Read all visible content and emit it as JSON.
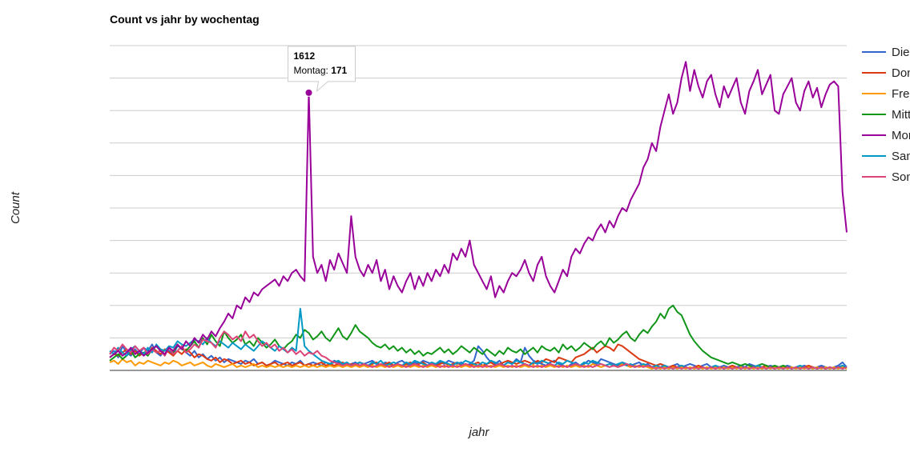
{
  "chart_data": {
    "type": "line",
    "title": "Count vs jahr by wochentag",
    "xlabel": "jahr",
    "ylabel": "Count",
    "ylim": [
      0,
      200
    ],
    "grid": true,
    "legend_position": "right",
    "series": [
      {
        "name": "Dienstag",
        "color": "#3366cc",
        "values": [
          10,
          12,
          8,
          15,
          11,
          9,
          13,
          10,
          14,
          12,
          16,
          11,
          9,
          13,
          12,
          10,
          15,
          14,
          11,
          9,
          12,
          8,
          10,
          7,
          9,
          6,
          8,
          5,
          7,
          6,
          5,
          4,
          6,
          5,
          7,
          4,
          5,
          3,
          4,
          6,
          5,
          4,
          3,
          5,
          4,
          6,
          3,
          4,
          5,
          4,
          3,
          5,
          4,
          6,
          5,
          4,
          3,
          4,
          5,
          3,
          4,
          5,
          6,
          4,
          3,
          5,
          4,
          3,
          5,
          6,
          4,
          3,
          5,
          4,
          6,
          5,
          4,
          3,
          5,
          4,
          6,
          5,
          4,
          5,
          3,
          4,
          6,
          15,
          12,
          8,
          5,
          4,
          6,
          3,
          5,
          4,
          7,
          5,
          14,
          9,
          6,
          5,
          4,
          3,
          5,
          6,
          4,
          3,
          2,
          4,
          5,
          3,
          4,
          6,
          5,
          4,
          7,
          6,
          5,
          4,
          3,
          5,
          4,
          3,
          4,
          5,
          3,
          4,
          2,
          3,
          4,
          3,
          2,
          3,
          4,
          2,
          3,
          4,
          3,
          2,
          3,
          4,
          2,
          1,
          2,
          3,
          2,
          3,
          2,
          3,
          2,
          4,
          3,
          2,
          1,
          2,
          3,
          2,
          1,
          2,
          3,
          2,
          1,
          2,
          3,
          2,
          1,
          2,
          3,
          2,
          1,
          2,
          3,
          5,
          2
        ]
      },
      {
        "name": "Donnerstag",
        "color": "#dc3912",
        "values": [
          8,
          10,
          9,
          11,
          13,
          10,
          12,
          9,
          11,
          10,
          14,
          12,
          10,
          13,
          11,
          9,
          12,
          10,
          13,
          11,
          8,
          10,
          9,
          7,
          6,
          8,
          5,
          7,
          6,
          4,
          5,
          6,
          4,
          5,
          3,
          4,
          5,
          3,
          4,
          5,
          3,
          4,
          5,
          3,
          4,
          5,
          3,
          4,
          3,
          4,
          5,
          3,
          4,
          3,
          4,
          5,
          3,
          4,
          3,
          5,
          4,
          3,
          4,
          5,
          3,
          4,
          5,
          3,
          4,
          3,
          4,
          5,
          3,
          4,
          5,
          3,
          4,
          3,
          4,
          5,
          3,
          4,
          5,
          3,
          4,
          3,
          4,
          5,
          3,
          4,
          5,
          3,
          4,
          5,
          6,
          5,
          4,
          5,
          6,
          5,
          4,
          6,
          5,
          7,
          6,
          5,
          8,
          7,
          6,
          5,
          8,
          9,
          10,
          12,
          14,
          11,
          13,
          15,
          14,
          12,
          16,
          15,
          13,
          11,
          9,
          7,
          6,
          5,
          4,
          3,
          4,
          3,
          2,
          3,
          2,
          3,
          2,
          1,
          2,
          3,
          2,
          1,
          2,
          1,
          2,
          1,
          2,
          3,
          2,
          1,
          2,
          1,
          2,
          1,
          2,
          3,
          2,
          1,
          2,
          1,
          2,
          1,
          2,
          1,
          2,
          3,
          2,
          1,
          2,
          1,
          2,
          1,
          2,
          3,
          2
        ]
      },
      {
        "name": "Freitag",
        "color": "#ff9900",
        "values": [
          5,
          6,
          4,
          7,
          5,
          6,
          3,
          5,
          4,
          6,
          5,
          4,
          3,
          5,
          4,
          6,
          5,
          3,
          4,
          5,
          3,
          4,
          5,
          3,
          2,
          4,
          3,
          2,
          3,
          4,
          2,
          3,
          2,
          3,
          4,
          2,
          3,
          2,
          3,
          2,
          3,
          2,
          3,
          2,
          3,
          2,
          3,
          2,
          3,
          2,
          3,
          2,
          3,
          2,
          3,
          2,
          3,
          2,
          3,
          2,
          3,
          2,
          3,
          2,
          3,
          2,
          3,
          2,
          3,
          2,
          3,
          2,
          3,
          2,
          3,
          2,
          3,
          2,
          3,
          2,
          3,
          2,
          3,
          2,
          3,
          2,
          3,
          2,
          3,
          2,
          3,
          2,
          3,
          2,
          3,
          2,
          3,
          2,
          3,
          2,
          3,
          2,
          3,
          2,
          3,
          2,
          3,
          2,
          3,
          2,
          3,
          2,
          3,
          2,
          4,
          3,
          2,
          3,
          4,
          3,
          2,
          4,
          3,
          2,
          3,
          2,
          3,
          2,
          1,
          2,
          1,
          2,
          1,
          2,
          1,
          2,
          1,
          2,
          1,
          2,
          1,
          2,
          1,
          2,
          1,
          2,
          1,
          2,
          1,
          2,
          1,
          2,
          1,
          2,
          1,
          2,
          1,
          2,
          1,
          2,
          1,
          2,
          1,
          2,
          1,
          2,
          1,
          2,
          1,
          2,
          1,
          2,
          1,
          2,
          1
        ]
      },
      {
        "name": "Mittwoch",
        "color": "#109618",
        "values": [
          6,
          8,
          10,
          7,
          9,
          12,
          8,
          10,
          11,
          9,
          13,
          15,
          12,
          10,
          14,
          11,
          16,
          13,
          12,
          15,
          18,
          14,
          20,
          16,
          22,
          18,
          15,
          24,
          20,
          17,
          19,
          22,
          16,
          18,
          15,
          20,
          17,
          14,
          16,
          19,
          15,
          13,
          16,
          18,
          22,
          20,
          25,
          23,
          19,
          21,
          24,
          20,
          18,
          22,
          26,
          21,
          19,
          23,
          28,
          24,
          22,
          20,
          17,
          15,
          14,
          16,
          13,
          15,
          12,
          14,
          11,
          13,
          10,
          12,
          9,
          11,
          10,
          12,
          14,
          11,
          13,
          10,
          12,
          15,
          13,
          11,
          14,
          12,
          10,
          13,
          11,
          9,
          12,
          10,
          14,
          12,
          11,
          13,
          10,
          12,
          14,
          11,
          15,
          13,
          12,
          14,
          11,
          16,
          13,
          15,
          12,
          14,
          17,
          15,
          13,
          16,
          18,
          15,
          20,
          17,
          19,
          22,
          24,
          20,
          18,
          22,
          25,
          23,
          27,
          30,
          35,
          32,
          38,
          40,
          36,
          34,
          28,
          22,
          18,
          15,
          12,
          10,
          8,
          7,
          6,
          5,
          4,
          5,
          4,
          3,
          4,
          3,
          2,
          3,
          4,
          3,
          2,
          3,
          2,
          3,
          2,
          1,
          2,
          1,
          2,
          1,
          2,
          1,
          2,
          1,
          2,
          1,
          2,
          1,
          2
        ]
      },
      {
        "name": "Montag",
        "color": "#990099",
        "values": [
          8,
          10,
          12,
          9,
          11,
          14,
          10,
          12,
          9,
          11,
          13,
          15,
          12,
          10,
          14,
          12,
          16,
          13,
          18,
          15,
          20,
          17,
          22,
          19,
          24,
          21,
          26,
          30,
          35,
          32,
          40,
          38,
          45,
          42,
          48,
          46,
          50,
          52,
          54,
          56,
          52,
          58,
          55,
          60,
          62,
          58,
          55,
          171,
          70,
          60,
          65,
          55,
          68,
          62,
          72,
          66,
          60,
          95,
          70,
          62,
          58,
          65,
          60,
          68,
          55,
          62,
          50,
          58,
          52,
          48,
          55,
          60,
          50,
          58,
          52,
          60,
          55,
          62,
          58,
          65,
          60,
          72,
          68,
          75,
          70,
          80,
          65,
          60,
          55,
          50,
          58,
          45,
          52,
          48,
          55,
          60,
          58,
          62,
          68,
          60,
          55,
          65,
          70,
          58,
          52,
          48,
          55,
          62,
          58,
          70,
          75,
          72,
          78,
          82,
          80,
          86,
          90,
          85,
          92,
          88,
          95,
          100,
          98,
          105,
          110,
          115,
          125,
          130,
          140,
          135,
          150,
          160,
          170,
          158,
          165,
          180,
          190,
          172,
          185,
          175,
          168,
          178,
          182,
          170,
          162,
          175,
          168,
          174,
          180,
          165,
          158,
          172,
          178,
          185,
          170,
          176,
          182,
          160,
          158,
          170,
          175,
          180,
          165,
          160,
          172,
          178,
          168,
          174,
          162,
          170,
          176,
          178,
          175,
          110,
          85
        ]
      },
      {
        "name": "Samstag",
        "color": "#0099c6",
        "values": [
          12,
          10,
          14,
          11,
          9,
          13,
          15,
          12,
          10,
          14,
          11,
          16,
          13,
          12,
          15,
          14,
          18,
          16,
          15,
          17,
          19,
          18,
          16,
          20,
          17,
          15,
          18,
          16,
          14,
          17,
          15,
          13,
          16,
          14,
          12,
          15,
          18,
          16,
          14,
          12,
          15,
          13,
          11,
          14,
          12,
          38,
          15,
          12,
          10,
          8,
          6,
          5,
          4,
          5,
          6,
          4,
          5,
          3,
          4,
          5,
          4,
          3,
          5,
          4,
          6,
          3,
          4,
          5,
          4,
          3,
          5,
          4,
          6,
          5,
          4,
          3,
          5,
          4,
          6,
          5,
          4,
          3,
          5,
          4,
          6,
          5,
          4,
          3,
          5,
          4,
          6,
          5,
          4,
          3,
          5,
          4,
          6,
          5,
          4,
          3,
          5,
          4,
          6,
          5,
          4,
          3,
          5,
          4,
          6,
          5,
          4,
          3,
          5,
          4,
          6,
          5,
          4,
          3,
          4,
          3,
          4,
          5,
          3,
          4,
          2,
          3,
          4,
          3,
          2,
          3,
          2,
          3,
          2,
          1,
          2,
          3,
          2,
          1,
          2,
          1,
          2,
          1,
          2,
          3,
          2,
          1,
          2,
          1,
          2,
          1,
          2,
          1,
          2,
          3,
          2,
          1,
          2,
          1,
          2,
          1,
          2,
          1,
          2,
          3,
          2,
          1,
          2,
          1,
          2,
          1,
          2,
          1,
          2,
          3,
          2
        ]
      },
      {
        "name": "Sonntag",
        "color": "#dd4477",
        "values": [
          10,
          14,
          12,
          16,
          13,
          11,
          15,
          12,
          14,
          10,
          13,
          11,
          12,
          9,
          14,
          10,
          12,
          15,
          11,
          13,
          16,
          14,
          19,
          18,
          17,
          14,
          20,
          24,
          22,
          19,
          21,
          18,
          24,
          20,
          22,
          18,
          15,
          17,
          14,
          16,
          12,
          14,
          11,
          13,
          10,
          12,
          9,
          11,
          10,
          12,
          9,
          8,
          6,
          5,
          4,
          3,
          4,
          3,
          4,
          3,
          4,
          3,
          2,
          3,
          4,
          3,
          2,
          3,
          4,
          3,
          2,
          3,
          4,
          3,
          2,
          3,
          4,
          3,
          2,
          3,
          2,
          3,
          2,
          3,
          4,
          3,
          2,
          3,
          2,
          3,
          2,
          3,
          4,
          3,
          2,
          3,
          2,
          3,
          4,
          3,
          2,
          3,
          2,
          3,
          4,
          3,
          2,
          3,
          2,
          3,
          4,
          3,
          2,
          3,
          2,
          3,
          4,
          3,
          2,
          3,
          2,
          3,
          4,
          3,
          2,
          3,
          2,
          3,
          2,
          1,
          2,
          1,
          2,
          1,
          2,
          1,
          2,
          1,
          2,
          1,
          2,
          1,
          2,
          1,
          2,
          1,
          2,
          1,
          2,
          1,
          2,
          1,
          2,
          1,
          2,
          1,
          2,
          1,
          2,
          1,
          2,
          1,
          2,
          1,
          2,
          1,
          2,
          1,
          2,
          1,
          2,
          1,
          2,
          1,
          2
        ]
      }
    ],
    "tooltip": {
      "header": "1612",
      "series": "Montag",
      "label": "Montag: ",
      "value": "171"
    }
  }
}
